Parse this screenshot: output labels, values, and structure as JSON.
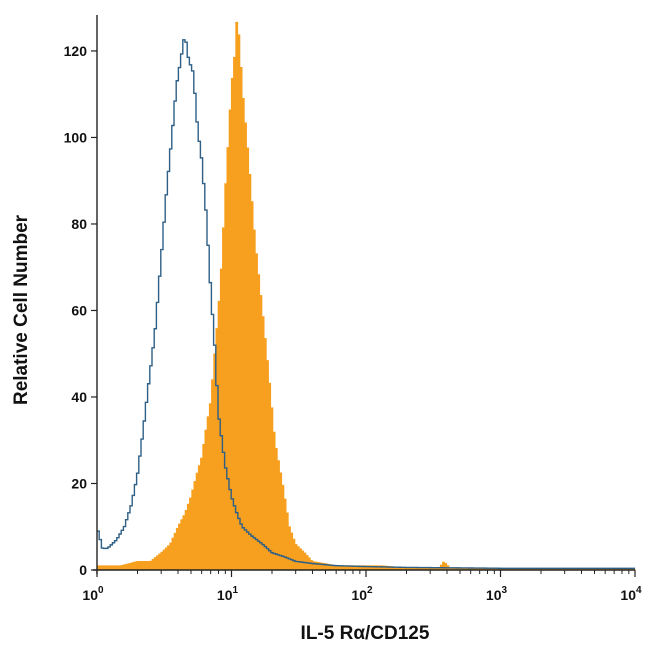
{
  "chart_data": {
    "type": "area",
    "title": "",
    "xlabel": "IL-5 Rα/CD125",
    "ylabel": "Relative Cell Number",
    "xscale": "log",
    "xlim": [
      1,
      10000
    ],
    "ylim": [
      0,
      126
    ],
    "y_ticks": [
      0,
      20,
      40,
      60,
      80,
      100,
      120
    ],
    "x_ticks": [
      {
        "value": 1,
        "base": "10",
        "exp": "0"
      },
      {
        "value": 10,
        "base": "10",
        "exp": "1"
      },
      {
        "value": 100,
        "base": "10",
        "exp": "2"
      },
      {
        "value": 1000,
        "base": "10",
        "exp": "3"
      },
      {
        "value": 10000,
        "base": "10",
        "exp": "4"
      }
    ],
    "grid": false,
    "legend": "none",
    "series": [
      {
        "style": "filled",
        "color": "#f7a01f",
        "x": [
          1.0,
          1.5,
          2.0,
          2.5,
          3.0,
          3.5,
          4.0,
          4.5,
          5.0,
          5.5,
          6.0,
          6.5,
          7.0,
          7.5,
          8.0,
          8.5,
          9.0,
          9.5,
          10.0,
          10.5,
          11.0,
          11.5,
          12.0,
          13.0,
          14.0,
          15.0,
          17.0,
          19.0,
          21.0,
          24.0,
          27.0,
          30.0,
          35.0,
          40.0,
          50.0,
          60.0,
          80.0,
          100.0,
          130.0,
          200.0,
          350.0,
          380.0,
          420.0,
          1000.0,
          10000.0
        ],
        "y": [
          1,
          1,
          2,
          2,
          4,
          6,
          10,
          13,
          17,
          22,
          26,
          33,
          39,
          50,
          60,
          72,
          88,
          100,
          112,
          118,
          128,
          122,
          112,
          100,
          88,
          76,
          60,
          45,
          30,
          20,
          10,
          6,
          4,
          2,
          1.5,
          1,
          1,
          1,
          1,
          0.5,
          0.5,
          2,
          0.5,
          0.3,
          0.3
        ]
      },
      {
        "style": "outline",
        "color": "#2e5f86",
        "x": [
          1.0,
          1.1,
          1.2,
          1.4,
          1.6,
          1.8,
          2.0,
          2.2,
          2.4,
          2.7,
          3.0,
          3.3,
          3.6,
          3.9,
          4.2,
          4.5,
          4.8,
          5.2,
          5.6,
          6.0,
          6.5,
          7.0,
          7.5,
          8.0,
          9.0,
          10.0,
          11.0,
          12.0,
          14.0,
          17.0,
          20.0,
          25.0,
          30.0,
          40.0,
          60.0,
          100.0,
          200.0,
          1000.0,
          10000.0
        ],
        "y": [
          10,
          5,
          5,
          7,
          10,
          15,
          22,
          32,
          42,
          55,
          72,
          88,
          100,
          112,
          118,
          124,
          118,
          115,
          102,
          95,
          82,
          65,
          52,
          36,
          24,
          17,
          13,
          10,
          8,
          6,
          4,
          3,
          2,
          1.5,
          1,
          0.8,
          0.6,
          0.4,
          0.4
        ]
      }
    ]
  }
}
